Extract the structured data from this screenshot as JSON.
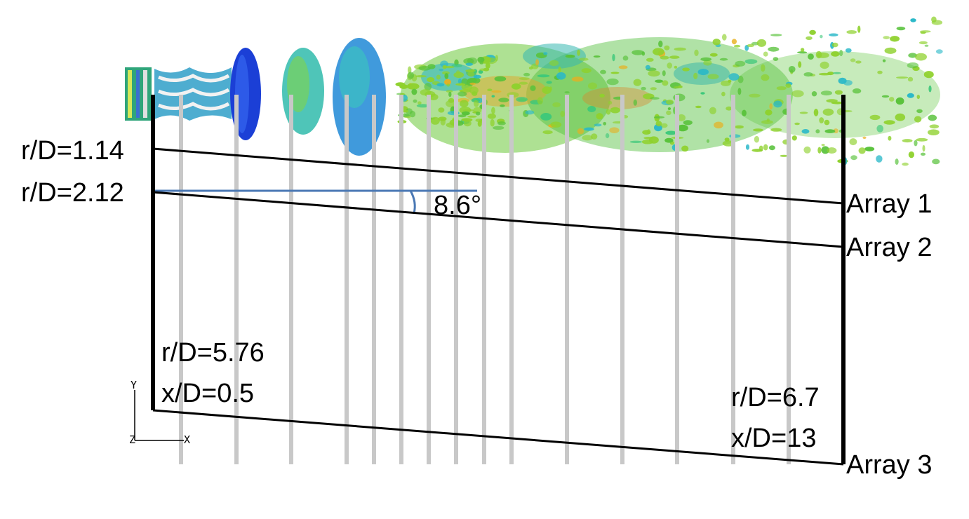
{
  "labels": {
    "r1": "r/D=1.14",
    "r2": "r/D=2.12",
    "angle": "8.6°",
    "array1": "Array 1",
    "array2": "Array 2",
    "array3": "Array 3",
    "left_r": "r/D=5.76",
    "left_x": "x/D=0.5",
    "right_r": "r/D=6.7",
    "right_x": "x/D=13"
  },
  "axes_triad": {
    "vertical": "Y",
    "horizontal": "X",
    "out_of_plane": "Z"
  },
  "colors": {
    "frame": "#000000",
    "probe_lines": "#c8c8c8",
    "angle_reference": "#4a78b4",
    "vortex_palette": [
      "#1a3fd1",
      "#2a7fe0",
      "#29b8c8",
      "#3cc87a",
      "#59c23b",
      "#8fd12e",
      "#e8b020",
      "#d2461e"
    ]
  }
}
